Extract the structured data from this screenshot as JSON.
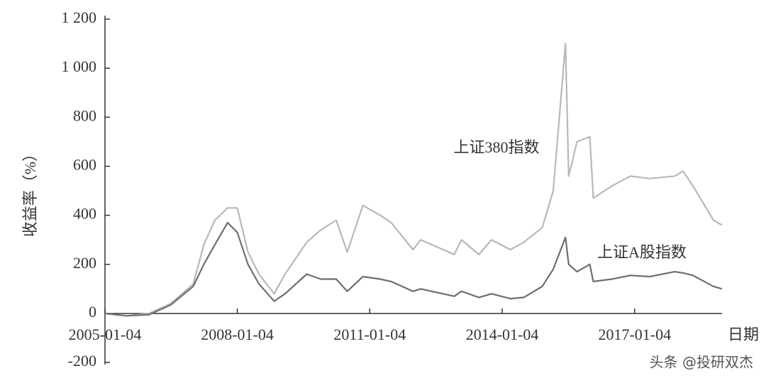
{
  "chart_data": {
    "type": "line",
    "ylabel": "收益率（%）",
    "xlabel": "日期",
    "annotations": [
      "上证380指数",
      "上证A股指数"
    ],
    "watermark": "头条 @投研双杰",
    "xlim": [
      "2005-01-04",
      "2018-12-28"
    ],
    "xticks": [
      "2005-01-04",
      "2008-01-04",
      "2011-01-04",
      "2014-01-04",
      "2017-01-04"
    ],
    "ylim": [
      -200,
      1200
    ],
    "yticks": [
      {
        "value": 1200,
        "label": "1 200"
      },
      {
        "value": 1000,
        "label": "1 000"
      },
      800,
      600,
      400,
      200,
      0,
      -200
    ],
    "x": [
      "2005-01-04",
      "2005-07-01",
      "2006-01-04",
      "2006-07-03",
      "2007-01-04",
      "2007-04-02",
      "2007-07-02",
      "2007-10-16",
      "2008-01-04",
      "2008-04-01",
      "2008-07-01",
      "2008-11-04",
      "2009-02-02",
      "2009-07-31",
      "2009-11-24",
      "2010-04-01",
      "2010-07-02",
      "2010-11-08",
      "2011-04-01",
      "2011-07-01",
      "2011-12-28",
      "2012-03-01",
      "2012-12-04",
      "2013-02-01",
      "2013-06-25",
      "2013-10-08",
      "2014-03-12",
      "2014-07-01",
      "2014-12-01",
      "2015-03-02",
      "2015-06-12",
      "2015-07-08",
      "2015-09-15",
      "2015-12-30",
      "2016-01-28",
      "2016-07-01",
      "2016-11-29",
      "2017-05-10",
      "2017-12-01",
      "2018-02-08",
      "2018-05-01",
      "2018-10-18",
      "2018-12-28"
    ],
    "series": [
      {
        "name": "上证380指数",
        "color": "#b8b8b8",
        "values": [
          0,
          -10,
          0,
          40,
          120,
          280,
          380,
          430,
          430,
          250,
          160,
          80,
          160,
          290,
          340,
          380,
          250,
          440,
          400,
          370,
          260,
          300,
          240,
          300,
          240,
          300,
          260,
          290,
          350,
          500,
          1100,
          560,
          700,
          720,
          470,
          520,
          560,
          550,
          560,
          580,
          520,
          380,
          360
        ]
      },
      {
        "name": "上证A股指数",
        "color": "#6e6e6e",
        "values": [
          0,
          -10,
          -5,
          35,
          110,
          200,
          280,
          370,
          330,
          200,
          120,
          50,
          80,
          160,
          140,
          140,
          90,
          150,
          140,
          130,
          90,
          100,
          70,
          90,
          65,
          80,
          60,
          65,
          110,
          180,
          310,
          200,
          170,
          200,
          130,
          140,
          155,
          150,
          170,
          165,
          155,
          110,
          100
        ]
      }
    ]
  }
}
